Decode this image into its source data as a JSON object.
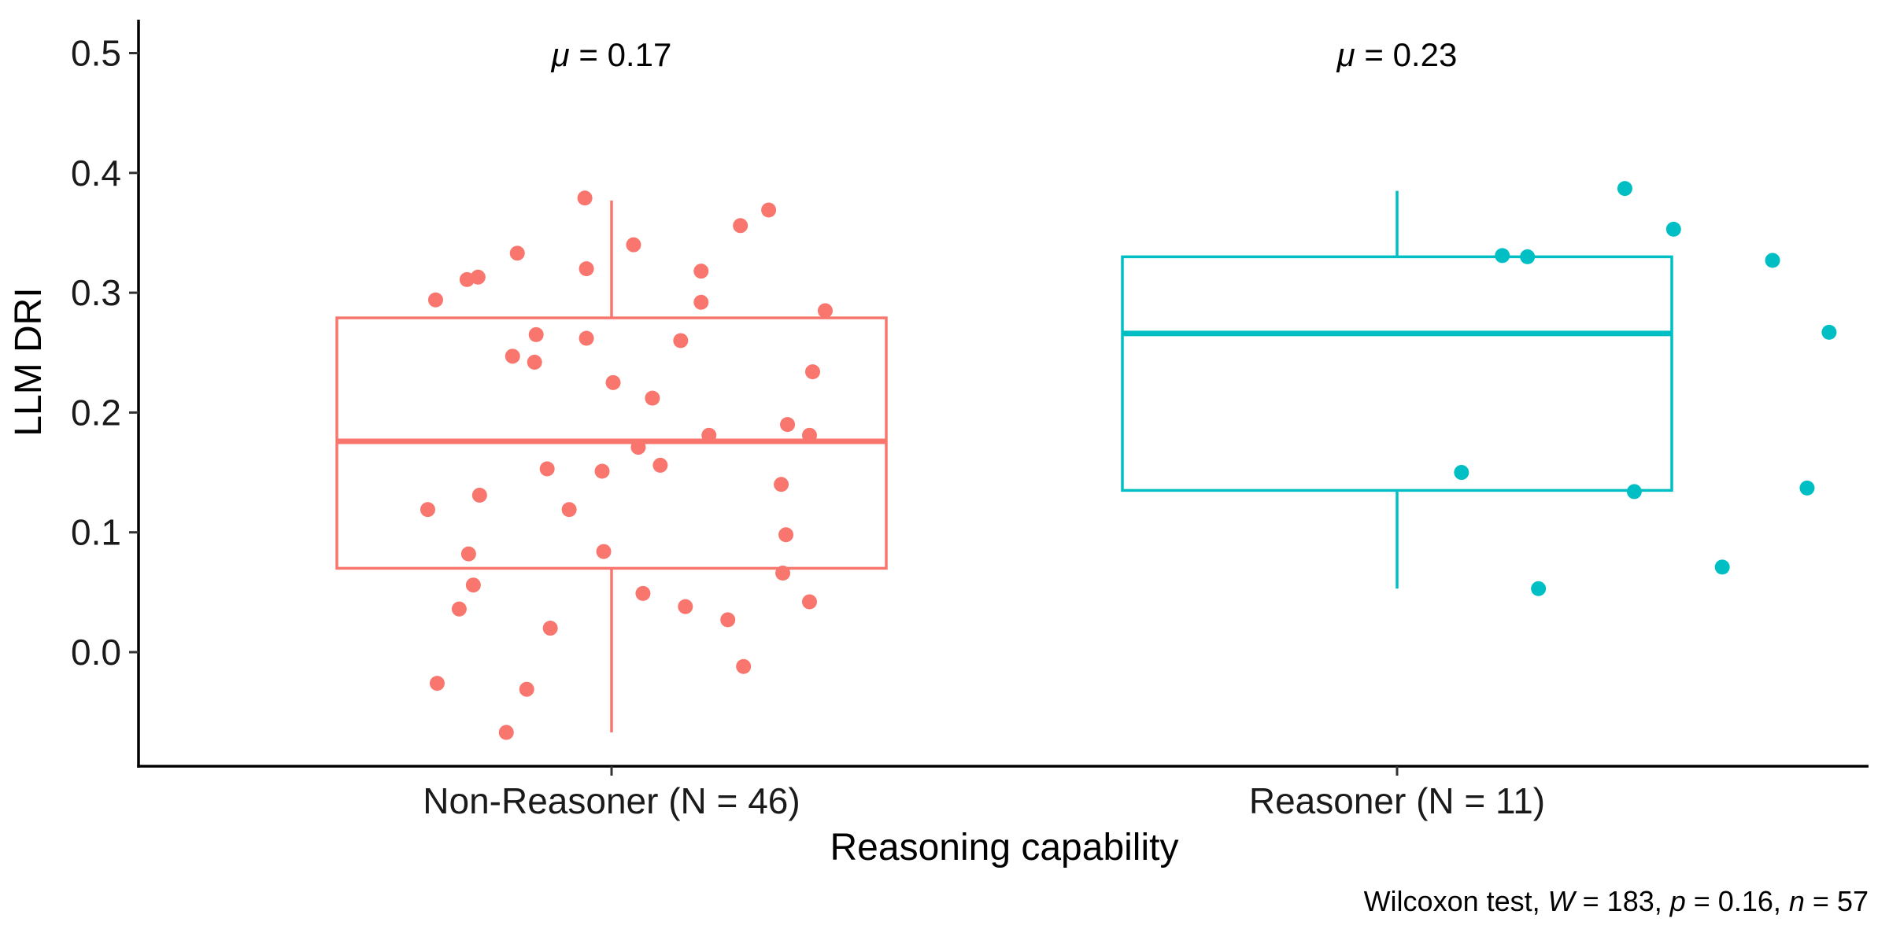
{
  "chart_data": {
    "type": "box",
    "xlabel": "Reasoning capability",
    "ylabel": "LLM DRI",
    "ylim": [
      -0.095,
      0.525
    ],
    "yticks": [
      0.0,
      0.1,
      0.2,
      0.3,
      0.4,
      0.5
    ],
    "ytick_labels": [
      "0.0",
      "0.1",
      "0.2",
      "0.3",
      "0.4",
      "0.5"
    ],
    "grid": false,
    "legend": "none",
    "categories": [
      "Non-Reasoner (N = 46)",
      "Reasoner (N = 11)"
    ],
    "groups": [
      {
        "category": "Non-Reasoner (N = 46)",
        "color": "#F8766D",
        "mean_label": "0.17",
        "box": {
          "whisker_low": -0.067,
          "q1": 0.07,
          "median": 0.176,
          "q3": 0.279,
          "whisker_high": 0.377
        },
        "points": [
          {
            "jitter": 0.483,
            "y": 0.379
          },
          {
            "jitter": 0.6,
            "y": 0.369
          },
          {
            "jitter": 0.582,
            "y": 0.356
          },
          {
            "jitter": 0.514,
            "y": 0.34
          },
          {
            "jitter": 0.44,
            "y": 0.333
          },
          {
            "jitter": 0.484,
            "y": 0.32
          },
          {
            "jitter": 0.557,
            "y": 0.318
          },
          {
            "jitter": 0.415,
            "y": 0.313
          },
          {
            "jitter": 0.408,
            "y": 0.311
          },
          {
            "jitter": 0.388,
            "y": 0.294
          },
          {
            "jitter": 0.557,
            "y": 0.292
          },
          {
            "jitter": 0.636,
            "y": 0.285
          },
          {
            "jitter": 0.452,
            "y": 0.265
          },
          {
            "jitter": 0.484,
            "y": 0.262
          },
          {
            "jitter": 0.544,
            "y": 0.26
          },
          {
            "jitter": 0.437,
            "y": 0.247
          },
          {
            "jitter": 0.451,
            "y": 0.242
          },
          {
            "jitter": 0.628,
            "y": 0.234
          },
          {
            "jitter": 0.501,
            "y": 0.225
          },
          {
            "jitter": 0.526,
            "y": 0.212
          },
          {
            "jitter": 0.612,
            "y": 0.19
          },
          {
            "jitter": 0.562,
            "y": 0.181
          },
          {
            "jitter": 0.626,
            "y": 0.181
          },
          {
            "jitter": 0.517,
            "y": 0.171
          },
          {
            "jitter": 0.531,
            "y": 0.156
          },
          {
            "jitter": 0.459,
            "y": 0.153
          },
          {
            "jitter": 0.494,
            "y": 0.151
          },
          {
            "jitter": 0.608,
            "y": 0.14
          },
          {
            "jitter": 0.416,
            "y": 0.131
          },
          {
            "jitter": 0.383,
            "y": 0.119
          },
          {
            "jitter": 0.473,
            "y": 0.119
          },
          {
            "jitter": 0.611,
            "y": 0.098
          },
          {
            "jitter": 0.409,
            "y": 0.082
          },
          {
            "jitter": 0.495,
            "y": 0.084
          },
          {
            "jitter": 0.609,
            "y": 0.066
          },
          {
            "jitter": 0.412,
            "y": 0.056
          },
          {
            "jitter": 0.52,
            "y": 0.049
          },
          {
            "jitter": 0.626,
            "y": 0.042
          },
          {
            "jitter": 0.547,
            "y": 0.038
          },
          {
            "jitter": 0.403,
            "y": 0.036
          },
          {
            "jitter": 0.574,
            "y": 0.027
          },
          {
            "jitter": 0.461,
            "y": 0.02
          },
          {
            "jitter": 0.584,
            "y": -0.012
          },
          {
            "jitter": 0.389,
            "y": -0.026
          },
          {
            "jitter": 0.446,
            "y": -0.031
          },
          {
            "jitter": 0.433,
            "y": -0.067
          }
        ]
      },
      {
        "category": "Reasoner (N = 11)",
        "color": "#00BFC4",
        "mean_label": "0.23",
        "box": {
          "whisker_low": 0.053,
          "q1": 0.135,
          "median": 0.266,
          "q3": 0.33,
          "whisker_high": 0.385
        },
        "points": [
          {
            "jitter": 1.145,
            "y": 0.387
          },
          {
            "jitter": 1.176,
            "y": 0.353
          },
          {
            "jitter": 1.067,
            "y": 0.331
          },
          {
            "jitter": 1.083,
            "y": 0.33
          },
          {
            "jitter": 1.239,
            "y": 0.327
          },
          {
            "jitter": 1.275,
            "y": 0.267
          },
          {
            "jitter": 1.041,
            "y": 0.15
          },
          {
            "jitter": 1.261,
            "y": 0.137
          },
          {
            "jitter": 1.151,
            "y": 0.134
          },
          {
            "jitter": 1.207,
            "y": 0.071
          },
          {
            "jitter": 1.09,
            "y": 0.053
          }
        ]
      }
    ],
    "caption": {
      "prefix": "Wilcoxon test, ",
      "W_label": "W",
      "W_value": " = 183, ",
      "p_label": "p",
      "p_value": " = 0.16, ",
      "n_label": "n",
      "n_value": " = 57"
    },
    "mean_symbol": "μ",
    "mean_eq": " = "
  }
}
